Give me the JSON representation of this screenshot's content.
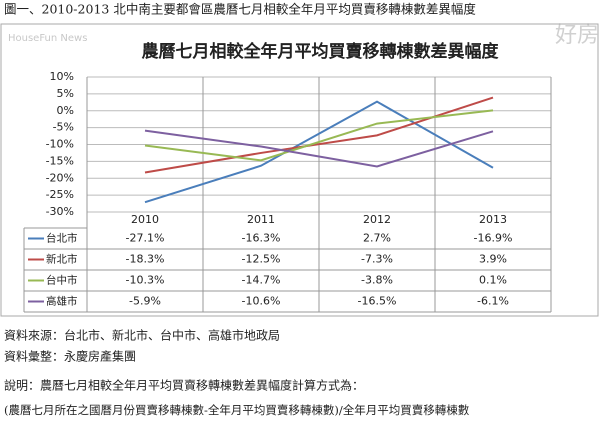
{
  "header": "圖一、2010-2013 北中南主要都會區農曆七月相較全年月平均買賣移轉棟數差異幅度",
  "watermark": "HouseFun News",
  "logo": "好房",
  "chart_data": {
    "type": "line",
    "title": "農曆七月相較全年月平均買賣移轉棟數差異幅度",
    "categories": [
      "2010",
      "2011",
      "2012",
      "2013"
    ],
    "ylim": [
      -30,
      10
    ],
    "yticks": [
      {
        "value": 10,
        "label": "10%"
      },
      {
        "value": 5,
        "label": "5%"
      },
      {
        "value": 0,
        "label": "0%"
      },
      {
        "value": -5,
        "label": "-5%"
      },
      {
        "value": -10,
        "label": "-10%"
      },
      {
        "value": -15,
        "label": "-15%"
      },
      {
        "value": -20,
        "label": "-20%"
      },
      {
        "value": -25,
        "label": "-25%"
      },
      {
        "value": -30,
        "label": "-30%"
      }
    ],
    "grid": true,
    "series": [
      {
        "name": "台北市",
        "color": "#4a7ebb",
        "values": [
          -27.1,
          -16.3,
          2.7,
          -16.9
        ],
        "value_labels": [
          "-27.1%",
          "-16.3%",
          "2.7%",
          "-16.9%"
        ]
      },
      {
        "name": "新北市",
        "color": "#be4b48",
        "values": [
          -18.3,
          -12.5,
          -7.3,
          3.9
        ],
        "value_labels": [
          "-18.3%",
          "-12.5%",
          "-7.3%",
          "3.9%"
        ]
      },
      {
        "name": "台中市",
        "color": "#98b954",
        "values": [
          -10.3,
          -14.7,
          -3.8,
          0.1
        ],
        "value_labels": [
          "-10.3%",
          "-14.7%",
          "-3.8%",
          "0.1%"
        ]
      },
      {
        "name": "高雄市",
        "color": "#7d60a0",
        "values": [
          -5.9,
          -10.6,
          -16.5,
          -6.1
        ],
        "value_labels": [
          "-5.9%",
          "-10.6%",
          "-16.5%",
          "-6.1%"
        ]
      }
    ]
  },
  "notes": [
    "資料來源：台北市、新北市、台中市、高雄市地政局",
    "資料彙整：永慶房產集團",
    "說明：農曆七月相較全年月平均買賣移轉棟數差異幅度計算方式為：",
    "(農曆七月所在之國曆月份買賣移轉棟數-全年月平均買賣移轉棟數)/全年月平均買賣移轉棟數"
  ]
}
